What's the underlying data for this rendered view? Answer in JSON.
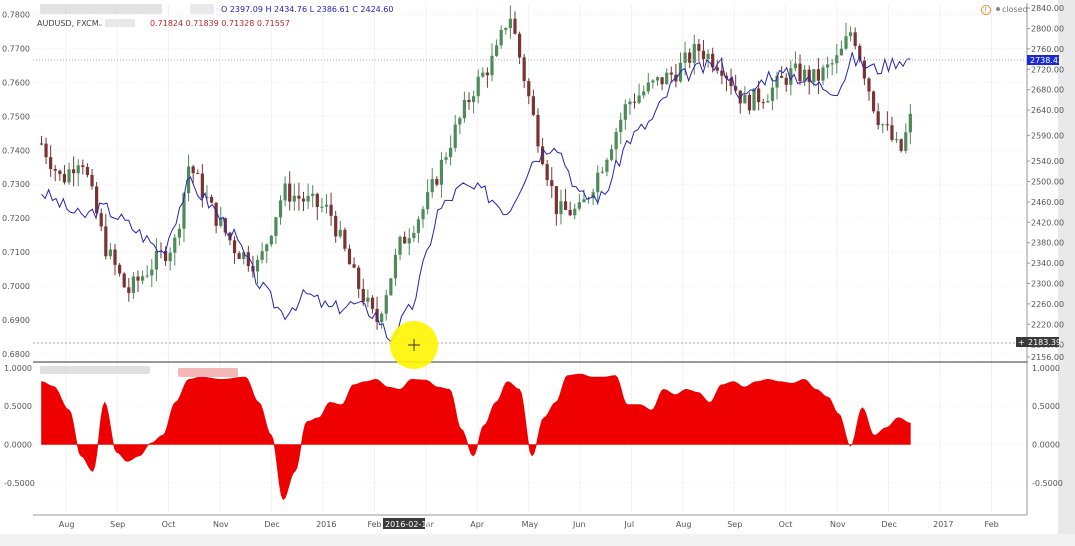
{
  "header": {
    "symbol": "AUDUSD, FXCM",
    "comparison_ohlc": "O 2397.09  H 2434.76  L 2386.61  C 2424.60",
    "main_ohlc": "0.71824  0.71839  0.71328  0.71557",
    "status": "closed"
  },
  "price_tags": {
    "last_comparison": "2738.42",
    "crosshair_right": "2183.39",
    "crosshair_date": "2016-02-18"
  },
  "colors": {
    "up_candle": "#4f8a5a",
    "down_candle": "#7a3333",
    "comparison_line": "#2424b8",
    "correlation_fill": "#ee0000",
    "cursor_highlight": "#fff500",
    "price_tag_blue": "#1a2bd6",
    "price_tag_dark": "#3a3a3a"
  },
  "chart_data": [
    {
      "type": "candlestick",
      "title": "AUDUSD, FXCM",
      "left_axis": {
        "ticks": [
          "0.7800",
          "0.7700",
          "0.7600",
          "0.7500",
          "0.7400",
          "0.7300",
          "0.7200",
          "0.7100",
          "0.7000",
          "0.6900",
          "0.6800"
        ],
        "range": [
          0.6785,
          0.7828
        ]
      },
      "right_axis": {
        "ticks": [
          "2840.00",
          "2800.00",
          "2760.00",
          "2720.00",
          "2680.00",
          "2640.00",
          "2590.00",
          "2540.00",
          "2500.00",
          "2460.00",
          "2420.00",
          "2380.00",
          "2340.00",
          "2300.00",
          "2260.00",
          "2220.00",
          "2180.00",
          "2156.00"
        ],
        "range": [
          2152,
          2846
        ]
      },
      "x_axis_labels": [
        "Aug",
        "Sep",
        "Oct",
        "Nov",
        "Dec",
        "2016",
        "Feb",
        "Mar",
        "Apr",
        "May",
        "Jun",
        "Jul",
        "Aug",
        "Sep",
        "Oct",
        "Nov",
        "Dec",
        "2017",
        "Feb"
      ],
      "price_series": {
        "name": "AUDUSD",
        "x": [
          "Jul 17",
          "Jul 29",
          "Aug 10",
          "Aug 24",
          "Sep 7",
          "Sep 21",
          "Oct 5",
          "Oct 13",
          "Oct 27",
          "Nov 10",
          "Nov 24",
          "Dec 8",
          "Dec 22",
          "Jan 5",
          "Jan 19",
          "Feb 2",
          "Feb 16",
          "Mar 1",
          "Mar 15",
          "Mar 29",
          "Apr 12",
          "Apr 20",
          "May 4",
          "May 18",
          "Jun 1",
          "Jun 15",
          "Jun 29",
          "Jul 13",
          "Jul 27",
          "Aug 10",
          "Aug 24",
          "Sep 7",
          "Sep 21",
          "Oct 5",
          "Oct 19",
          "Nov 2",
          "Nov 10",
          "Nov 24",
          "Dec 8",
          "Dec 14"
        ],
        "values": [
          0.742,
          0.731,
          0.739,
          0.712,
          0.698,
          0.706,
          0.713,
          0.736,
          0.722,
          0.711,
          0.706,
          0.728,
          0.725,
          0.722,
          0.703,
          0.689,
          0.712,
          0.724,
          0.742,
          0.758,
          0.768,
          0.781,
          0.749,
          0.722,
          0.722,
          0.737,
          0.754,
          0.759,
          0.763,
          0.77,
          0.765,
          0.754,
          0.757,
          0.763,
          0.761,
          0.767,
          0.776,
          0.751,
          0.739,
          0.749
        ]
      },
      "comparison_series": {
        "x": [
          "Jul 17",
          "Aug 10",
          "Aug 24",
          "Sep 14",
          "Sep 28",
          "Oct 13",
          "Oct 27",
          "Nov 10",
          "Nov 24",
          "Dec 8",
          "Dec 22",
          "Jan 5",
          "Jan 19",
          "Feb 2",
          "Feb 10",
          "Feb 24",
          "Mar 8",
          "Mar 22",
          "Apr 5",
          "Apr 19",
          "May 3",
          "May 17",
          "Jun 1",
          "Jun 15",
          "Jun 29",
          "Jul 13",
          "Jul 27",
          "Aug 10",
          "Aug 24",
          "Sep 7",
          "Sep 21",
          "Oct 5",
          "Oct 19",
          "Nov 2",
          "Nov 10",
          "Nov 24",
          "Dec 8",
          "Dec 14"
        ],
        "values": [
          2480,
          2430,
          2450,
          2400,
          2360,
          2500,
          2450,
          2390,
          2300,
          2240,
          2280,
          2250,
          2260,
          2240,
          2190,
          2260,
          2440,
          2490,
          2480,
          2440,
          2540,
          2580,
          2470,
          2470,
          2580,
          2620,
          2700,
          2720,
          2730,
          2660,
          2710,
          2710,
          2690,
          2680,
          2740,
          2720,
          2740,
          2738.42
        ]
      }
    },
    {
      "type": "area",
      "title": "",
      "y_axis": {
        "ticks": [
          "1.0000",
          "0.5000",
          "0.0000",
          "-0.5000"
        ],
        "range": [
          -0.88,
          1.05
        ]
      },
      "x": [
        "Jul 17",
        "Jul 24",
        "Aug 3",
        "Aug 10",
        "Aug 17",
        "Aug 24",
        "Aug 31",
        "Sep 7",
        "Sep 14",
        "Sep 21",
        "Sep 28",
        "Oct 5",
        "Oct 13",
        "Oct 20",
        "Nov 2",
        "Nov 16",
        "Nov 24",
        "Dec 1",
        "Dec 8",
        "Dec 15",
        "Dec 22",
        "Dec 29",
        "Jan 5",
        "Jan 12",
        "Jan 19",
        "Jan 26",
        "Feb 2",
        "Feb 9",
        "Feb 16",
        "Feb 23",
        "Mar 1",
        "Mar 8",
        "Mar 15",
        "Mar 22",
        "Mar 29",
        "Apr 5",
        "Apr 12",
        "Apr 19",
        "Apr 26",
        "May 3",
        "May 10",
        "May 17",
        "May 24",
        "Jun 1",
        "Jun 8",
        "Jun 15",
        "Jun 22",
        "Jun 29",
        "Jul 6",
        "Jul 13",
        "Jul 20",
        "Jul 27",
        "Aug 3",
        "Aug 10",
        "Aug 17",
        "Aug 24",
        "Aug 31",
        "Sep 7",
        "Sep 14",
        "Sep 21",
        "Sep 28",
        "Oct 5",
        "Oct 12",
        "Oct 19",
        "Oct 26",
        "Nov 2",
        "Nov 9",
        "Nov 16",
        "Nov 23",
        "Nov 30",
        "Dec 7",
        "Dec 14"
      ],
      "values": [
        0.82,
        0.76,
        0.45,
        -0.15,
        -0.35,
        0.55,
        -0.1,
        -0.22,
        -0.15,
        0.02,
        0.12,
        0.55,
        0.85,
        0.88,
        0.85,
        0.88,
        0.55,
        0.12,
        -0.72,
        -0.35,
        0.3,
        0.35,
        0.55,
        0.52,
        0.78,
        0.82,
        0.85,
        0.75,
        0.72,
        0.85,
        0.84,
        0.75,
        0.72,
        0.2,
        -0.15,
        0.25,
        0.55,
        0.82,
        0.72,
        -0.15,
        0.35,
        0.55,
        0.9,
        0.92,
        0.88,
        0.88,
        0.9,
        0.52,
        0.52,
        0.45,
        0.72,
        0.65,
        0.72,
        0.68,
        0.55,
        0.78,
        0.82,
        0.75,
        0.82,
        0.85,
        0.82,
        0.8,
        0.85,
        0.72,
        0.62,
        0.4,
        -0.02,
        0.48,
        0.12,
        0.22,
        0.35,
        0.28
      ]
    }
  ]
}
